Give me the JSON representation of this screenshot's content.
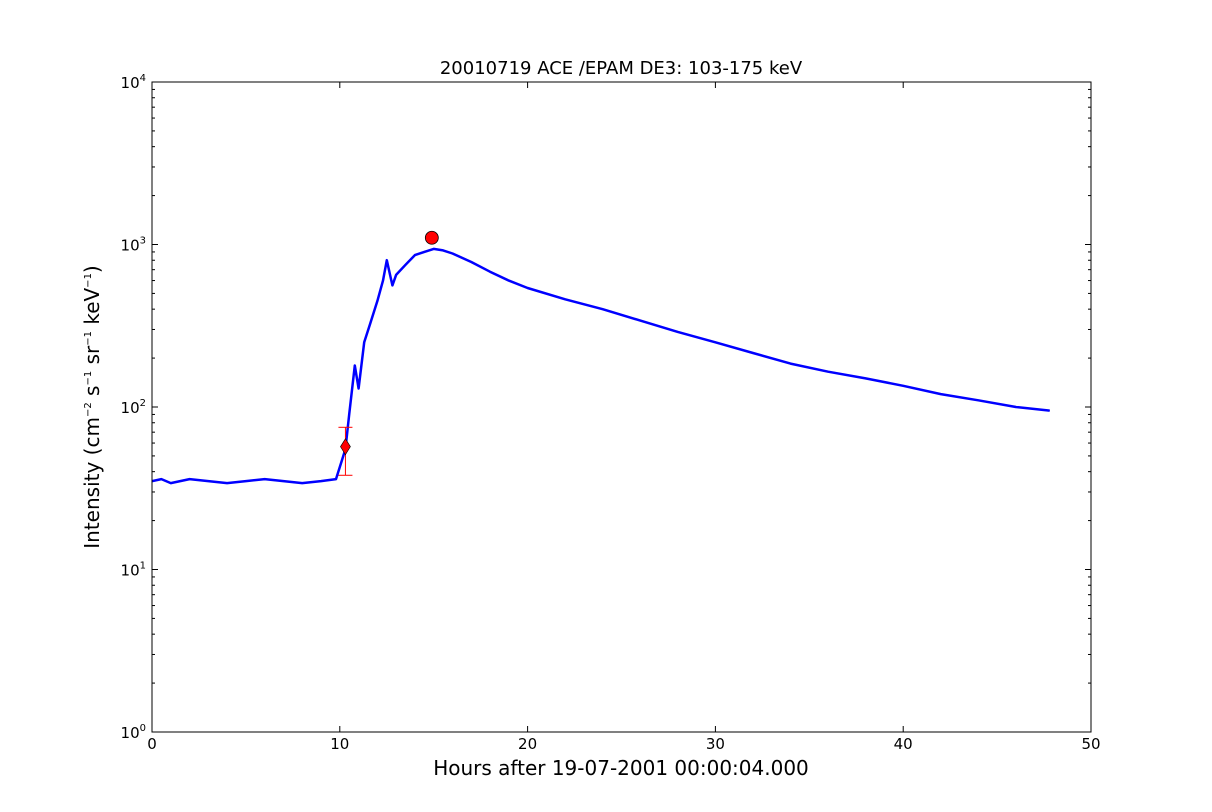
{
  "chart_data": {
    "type": "line",
    "title": "20010719 ACE /EPAM DE3: 103-175 keV",
    "xlabel": "Hours after 19-07-2001 00:00:04.000",
    "ylabel": {
      "prefix": "Intensity (cm",
      "s1": "−2",
      "mid1": " s",
      "s2": "−1",
      "mid2": " sr",
      "s3": "−1",
      "mid3": " keV",
      "s4": "−1",
      "suffix": ")"
    },
    "xlim": [
      0,
      50
    ],
    "ylim": [
      1,
      10000
    ],
    "yscale": "log",
    "xticks": [
      "0",
      "10",
      "20",
      "30",
      "40",
      "50"
    ],
    "xtick_values": [
      0,
      10,
      20,
      30,
      40,
      50
    ],
    "ytick_values": [
      1,
      10,
      100,
      1000,
      10000
    ],
    "yticks": [
      {
        "base": "10",
        "exp": "0"
      },
      {
        "base": "10",
        "exp": "1"
      },
      {
        "base": "10",
        "exp": "2"
      },
      {
        "base": "10",
        "exp": "3"
      },
      {
        "base": "10",
        "exp": "4"
      }
    ],
    "grid": false,
    "series": [
      {
        "color": "#000000",
        "x": [
          0.0,
          0.5,
          1.0,
          1.5,
          2.0,
          3.0,
          4.0,
          5.0,
          6.0,
          7.0,
          8.0,
          9.0,
          9.8,
          10.3,
          10.5,
          10.8,
          11.0,
          11.3,
          11.6,
          12.0,
          12.3,
          12.5,
          12.8,
          13.0,
          13.5,
          14.0,
          14.5,
          15.0,
          15.5,
          16.0,
          17.0,
          18.0,
          19.0,
          20.0,
          22.0,
          24.0,
          26.0,
          28.0,
          30.0,
          32.0,
          34.0,
          36.0,
          38.0,
          40.0,
          42.0,
          44.0,
          46.0,
          47.8
        ],
        "y": [
          35,
          36,
          34,
          35,
          36,
          35,
          34,
          35,
          36,
          35,
          34,
          35,
          36,
          55,
          90,
          180,
          130,
          250,
          320,
          450,
          600,
          800,
          560,
          650,
          750,
          860,
          900,
          940,
          920,
          880,
          780,
          680,
          600,
          540,
          460,
          400,
          340,
          290,
          250,
          215,
          185,
          165,
          150,
          135,
          120,
          110,
          100,
          95
        ]
      },
      {
        "color": "#0000ff",
        "x": [
          0.0,
          0.5,
          1.0,
          1.5,
          2.0,
          3.0,
          4.0,
          5.0,
          6.0,
          7.0,
          8.0,
          9.0,
          9.8,
          10.3,
          10.5,
          10.8,
          11.0,
          11.3,
          11.6,
          12.0,
          12.3,
          12.5,
          12.8,
          13.0,
          13.5,
          14.0,
          14.5,
          15.0,
          15.5,
          16.0,
          17.0,
          18.0,
          19.0,
          20.0,
          22.0,
          24.0,
          26.0,
          28.0,
          30.0,
          32.0,
          34.0,
          36.0,
          38.0,
          40.0,
          42.0,
          44.0,
          46.0,
          47.8
        ],
        "y": [
          35,
          36,
          34,
          35,
          36,
          35,
          34,
          35,
          36,
          35,
          34,
          35,
          36,
          55,
          90,
          180,
          130,
          250,
          320,
          450,
          600,
          800,
          560,
          650,
          750,
          860,
          900,
          940,
          920,
          880,
          780,
          680,
          600,
          540,
          460,
          400,
          340,
          290,
          250,
          215,
          185,
          165,
          150,
          135,
          120,
          110,
          100,
          95
        ]
      }
    ],
    "markers": {
      "onset": {
        "x": 10.3,
        "y": 57,
        "shape": "diamond",
        "color": "#ff0000"
      },
      "onset_error": {
        "x": 10.3,
        "y_low": 38,
        "y_high": 75,
        "shape": "plus",
        "color": "#ff0000"
      },
      "peak": {
        "x": 14.9,
        "y": 1100,
        "shape": "circle",
        "color": "#ff0000"
      }
    }
  }
}
